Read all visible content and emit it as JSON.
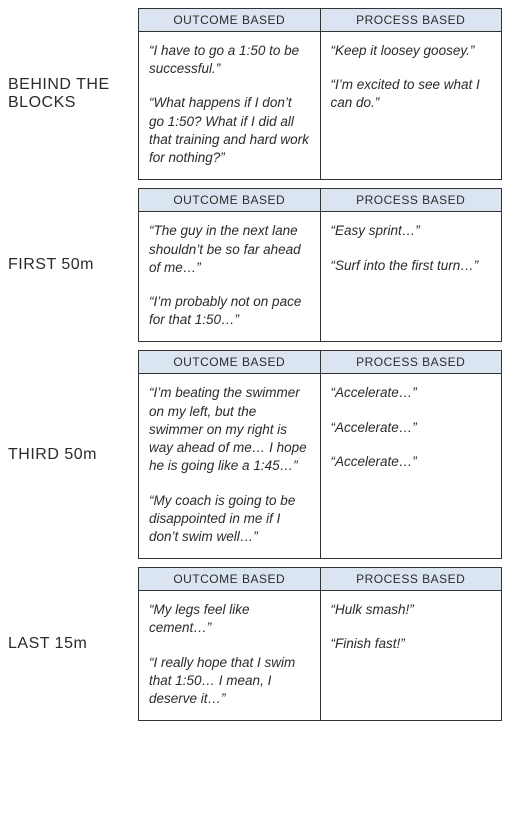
{
  "header_col1": "OUTCOME BASED",
  "header_col2": "PROCESS BASED",
  "colors": {
    "header_bg": "#dbe5f1",
    "border": "#333333",
    "text": "#2b2b2b",
    "page_bg": "#ffffff"
  },
  "typography": {
    "label_fontsize": 16,
    "header_fontsize": 12,
    "cell_fontsize": 13.5,
    "cell_fontstyle": "italic"
  },
  "sections": [
    {
      "label": "BEHIND THE BLOCKS",
      "outcome": [
        "“I have to go a 1:50 to be successful.”",
        "“What happens if I don’t go 1:50? What if I did all that training and hard work for nothing?”"
      ],
      "process": [
        "“Keep it loosey goosey.”",
        "“I’m excited to see what I can do.”"
      ]
    },
    {
      "label": "FIRST 50m",
      "outcome": [
        "“The guy in the next lane shouldn’t be so far ahead of me…”",
        "“I’m probably not on pace for that 1:50…”"
      ],
      "process": [
        "“Easy sprint…”",
        "“Surf into the first turn…”"
      ]
    },
    {
      "label": "THIRD 50m",
      "outcome": [
        "“I’m beating the swimmer on my left, but the swimmer on my right is way ahead of me… I hope he is going like a 1:45…”",
        "“My coach is going to be disappointed in me if I don’t swim well…”"
      ],
      "process": [
        "“Accelerate…”",
        "“Accelerate…”",
        "“Accelerate…”"
      ]
    },
    {
      "label": "LAST 15m",
      "outcome": [
        "“My legs feel like cement…”",
        "“I really hope that I swim that 1:50… I mean, I deserve it…”"
      ],
      "process": [
        "“Hulk smash!”",
        "“Finish fast!”"
      ]
    }
  ]
}
